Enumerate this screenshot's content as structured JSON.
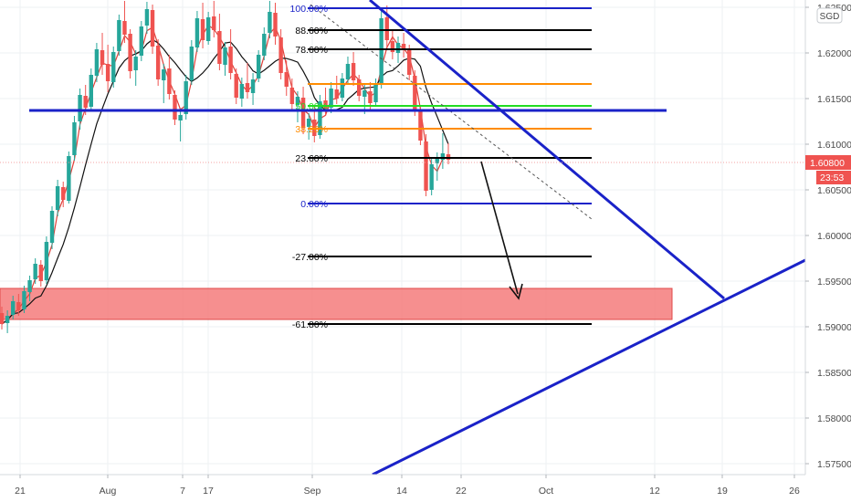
{
  "instrument": {
    "currency": "SGD",
    "last_price_label": "1.60800",
    "countdown": "23:53"
  },
  "colors": {
    "bull": "#26a69a",
    "bear": "#ef5350",
    "ma_red": "#e0403a",
    "ma_black": "#111111",
    "trend": "#1a22c8",
    "fib_black": "#000000",
    "fib_orange": "#ff8c00",
    "fib_green": "#22dd22",
    "fib_blue": "#1a22c8",
    "zone": "#f47b7b",
    "price_tag": "#ef5350",
    "axis_text": "#4a4a4a",
    "grid": "#eef0f3"
  },
  "axes": {
    "y_ticks": [
      "1.62500",
      "1.62000",
      "1.61500",
      "1.61000",
      "1.60500",
      "1.60000",
      "1.59500",
      "1.59000",
      "1.58500",
      "1.58000",
      "1.57500"
    ],
    "x_ticks": [
      "21",
      "Aug",
      "7",
      "17",
      "Sep",
      "14",
      "22",
      "Oct",
      "12",
      "19",
      "26"
    ]
  },
  "chart_data": {
    "type": "candlestick",
    "instrument_currency": "SGD",
    "ylim": [
      1.5738,
      1.6258
    ],
    "y_ticks": [
      1.625,
      1.62,
      1.615,
      1.61,
      1.605,
      1.6,
      1.595,
      1.59,
      1.585,
      1.58,
      1.575
    ],
    "x_ticks": [
      "21",
      "Aug",
      "7",
      "17",
      "Sep",
      "14",
      "22",
      "Oct",
      "12",
      "19",
      "26"
    ],
    "last_price": 1.608,
    "fibonacci": {
      "levels": [
        {
          "label": "100.00%",
          "price": 1.6249,
          "color": "blue"
        },
        {
          "label": "88.60%",
          "price": 1.6225,
          "color": "black"
        },
        {
          "label": "78.60%",
          "price": 1.6204,
          "color": "black"
        },
        {
          "label": "",
          "price": 1.6166,
          "color": "orange"
        },
        {
          "label": "50.00%",
          "price": 1.6142,
          "color": "green"
        },
        {
          "label": "38.20%",
          "price": 1.6117,
          "color": "orange"
        },
        {
          "label": "23.60%",
          "price": 1.6085,
          "color": "black"
        },
        {
          "label": "0.00%",
          "price": 1.6035,
          "color": "blue"
        },
        {
          "label": "-27.00%",
          "price": 1.5977,
          "color": "black"
        },
        {
          "label": "-61.80%",
          "price": 1.5903,
          "color": "black"
        }
      ]
    },
    "horizontal_resistance": 1.6137,
    "target_zone": [
      1.5908,
      1.5942
    ],
    "trendlines": [
      {
        "name": "descending",
        "from": [
          "Sep 10",
          1.6258
        ],
        "to": [
          "Oct 19",
          1.5955
        ]
      },
      {
        "name": "ascending",
        "from": [
          "Sep 11",
          1.5738
        ],
        "to": [
          "Oct 26+",
          1.5975
        ]
      }
    ],
    "projection_arrow": {
      "from": [
        "Sep 21",
        1.6087
      ],
      "to": [
        "Sep 29",
        1.5956
      ]
    },
    "candles": [
      [
        1.5915,
        1.5922,
        1.5897,
        1.5903
      ],
      [
        1.5904,
        1.5918,
        1.5893,
        1.5912
      ],
      [
        1.5913,
        1.5934,
        1.5908,
        1.5928
      ],
      [
        1.5927,
        1.5936,
        1.5912,
        1.5918
      ],
      [
        1.5919,
        1.5945,
        1.5915,
        1.5939
      ],
      [
        1.5938,
        1.5956,
        1.5928,
        1.5951
      ],
      [
        1.5952,
        1.5975,
        1.5947,
        1.5969
      ],
      [
        1.5968,
        1.5973,
        1.5944,
        1.595
      ],
      [
        1.5951,
        1.5999,
        1.5947,
        1.5993
      ],
      [
        1.5992,
        1.6032,
        1.5985,
        1.6027
      ],
      [
        1.6028,
        1.6061,
        1.6021,
        1.6054
      ],
      [
        1.6053,
        1.6059,
        1.6031,
        1.6039
      ],
      [
        1.6038,
        1.6092,
        1.6035,
        1.6087
      ],
      [
        1.6088,
        1.6131,
        1.6082,
        1.6124
      ],
      [
        1.6125,
        1.6161,
        1.6116,
        1.6154
      ],
      [
        1.6153,
        1.6165,
        1.6132,
        1.614
      ],
      [
        1.6141,
        1.6183,
        1.6138,
        1.6176
      ],
      [
        1.6175,
        1.6211,
        1.6168,
        1.6204
      ],
      [
        1.6203,
        1.6222,
        1.6176,
        1.6187
      ],
      [
        1.6188,
        1.6209,
        1.6157,
        1.6169
      ],
      [
        1.6168,
        1.6207,
        1.6162,
        1.6201
      ],
      [
        1.6202,
        1.6242,
        1.6197,
        1.6236
      ],
      [
        1.6235,
        1.6257,
        1.6211,
        1.622
      ],
      [
        1.6221,
        1.6226,
        1.6172,
        1.618
      ],
      [
        1.6181,
        1.6203,
        1.6164,
        1.6196
      ],
      [
        1.6197,
        1.6235,
        1.6191,
        1.6229
      ],
      [
        1.623,
        1.6256,
        1.6221,
        1.6248
      ],
      [
        1.6247,
        1.6253,
        1.6199,
        1.6207
      ],
      [
        1.6208,
        1.6215,
        1.6164,
        1.6171
      ],
      [
        1.617,
        1.6188,
        1.6145,
        1.6182
      ],
      [
        1.6183,
        1.6198,
        1.6149,
        1.6155
      ],
      [
        1.6154,
        1.6159,
        1.6121,
        1.6127
      ],
      [
        1.6126,
        1.6139,
        1.6103,
        1.6132
      ],
      [
        1.6133,
        1.6176,
        1.6127,
        1.6169
      ],
      [
        1.617,
        1.6214,
        1.6165,
        1.6207
      ],
      [
        1.6206,
        1.6246,
        1.6201,
        1.6238
      ],
      [
        1.6237,
        1.6255,
        1.6205,
        1.6214
      ],
      [
        1.6213,
        1.6245,
        1.6209,
        1.6239
      ],
      [
        1.624,
        1.6257,
        1.6217,
        1.6225
      ],
      [
        1.6224,
        1.6243,
        1.6181,
        1.6188
      ],
      [
        1.6187,
        1.6212,
        1.6175,
        1.6206
      ],
      [
        1.6207,
        1.6226,
        1.6171,
        1.6178
      ],
      [
        1.6177,
        1.6183,
        1.6144,
        1.6151
      ],
      [
        1.615,
        1.6173,
        1.6141,
        1.6166
      ],
      [
        1.6167,
        1.6189,
        1.615,
        1.6157
      ],
      [
        1.6156,
        1.6178,
        1.6143,
        1.6171
      ],
      [
        1.6172,
        1.6203,
        1.6168,
        1.6198
      ],
      [
        1.6197,
        1.6228,
        1.6192,
        1.6221
      ],
      [
        1.6222,
        1.6257,
        1.6216,
        1.6245
      ],
      [
        1.6244,
        1.6255,
        1.6209,
        1.6218
      ],
      [
        1.6217,
        1.6226,
        1.6171,
        1.6178
      ],
      [
        1.6179,
        1.6192,
        1.6153,
        1.6163
      ],
      [
        1.6162,
        1.6172,
        1.6136,
        1.6144
      ],
      [
        1.6143,
        1.6158,
        1.6124,
        1.6152
      ],
      [
        1.6151,
        1.6163,
        1.6111,
        1.6118
      ],
      [
        1.6119,
        1.6134,
        1.6105,
        1.6128
      ],
      [
        1.6127,
        1.6141,
        1.6102,
        1.6109
      ],
      [
        1.611,
        1.6154,
        1.6106,
        1.6147
      ],
      [
        1.6148,
        1.6162,
        1.6131,
        1.6139
      ],
      [
        1.614,
        1.6168,
        1.6134,
        1.6161
      ],
      [
        1.616,
        1.6175,
        1.6144,
        1.615
      ],
      [
        1.6151,
        1.6178,
        1.6147,
        1.6172
      ],
      [
        1.6171,
        1.6196,
        1.6165,
        1.6188
      ],
      [
        1.6189,
        1.6201,
        1.6164,
        1.617
      ],
      [
        1.6171,
        1.6176,
        1.6147,
        1.6153
      ],
      [
        1.6152,
        1.6165,
        1.6133,
        1.6159
      ],
      [
        1.6158,
        1.6168,
        1.6138,
        1.6145
      ],
      [
        1.6146,
        1.6172,
        1.6141,
        1.6166
      ],
      [
        1.6165,
        1.6248,
        1.6161,
        1.6238
      ],
      [
        1.6239,
        1.6252,
        1.6205,
        1.6214
      ],
      [
        1.6213,
        1.6226,
        1.6193,
        1.6201
      ],
      [
        1.62,
        1.6218,
        1.6189,
        1.6211
      ],
      [
        1.621,
        1.6222,
        1.6195,
        1.6203
      ],
      [
        1.6204,
        1.6209,
        1.617,
        1.6176
      ],
      [
        1.6175,
        1.6181,
        1.6131,
        1.6137
      ],
      [
        1.6136,
        1.6142,
        1.6099,
        1.6104
      ],
      [
        1.6103,
        1.6111,
        1.6043,
        1.6049
      ],
      [
        1.605,
        1.6085,
        1.6044,
        1.6078
      ],
      [
        1.6079,
        1.6091,
        1.606,
        1.6084
      ],
      [
        1.6083,
        1.6112,
        1.6073,
        1.609
      ],
      [
        1.6089,
        1.6101,
        1.6078,
        1.6083
      ]
    ]
  }
}
